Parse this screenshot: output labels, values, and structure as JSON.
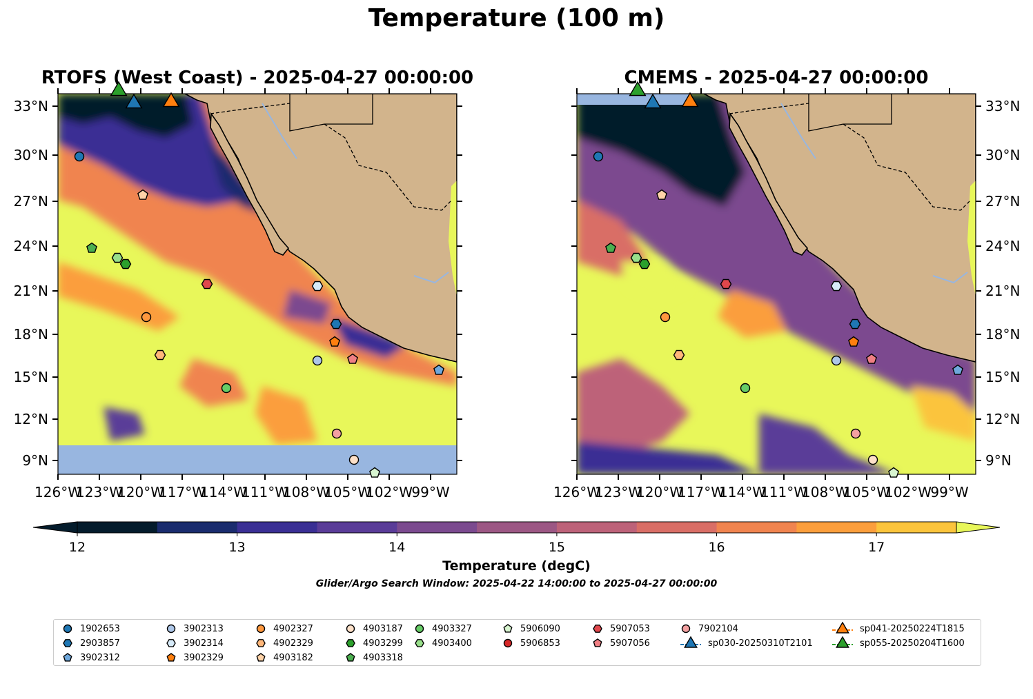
{
  "suptitle": "Temperature (100 m)",
  "panels": [
    {
      "title": "RTOFS (West Coast) - 2025-04-27 00:00:00"
    },
    {
      "title": "CMEMS - 2025-04-27 00:00:00"
    }
  ],
  "lat_ticks": [
    "33°N",
    "30°N",
    "27°N",
    "24°N",
    "21°N",
    "18°N",
    "15°N",
    "12°N",
    "9°N"
  ],
  "lon_ticks": [
    "126°W",
    "123°W",
    "120°W",
    "117°W",
    "114°W",
    "111°W",
    "108°W",
    "105°W",
    "102°W",
    "99°W"
  ],
  "colorbar": {
    "label": "Temperature (degC)",
    "ticks": [
      "12",
      "13",
      "14",
      "15",
      "16",
      "17"
    ],
    "colors": [
      "#041c2c",
      "#1a2c6e",
      "#3a2f94",
      "#5a3c98",
      "#7b4a8f",
      "#9c5784",
      "#bd6279",
      "#d96e66",
      "#f0844f",
      "#fb9e3c",
      "#fbc43c",
      "#e8f75a"
    ]
  },
  "window_text": "Glider/Argo Search Window: 2025-04-22 14:00:00 to 2025-04-27 00:00:00",
  "legend": [
    {
      "label": "1902653",
      "marker": "circle",
      "color": "#1f77b4"
    },
    {
      "label": "2903857",
      "marker": "hexagon",
      "color": "#1f77b4"
    },
    {
      "label": "3902312",
      "marker": "pentagon",
      "color": "#6fa8dc"
    },
    {
      "label": "3902313",
      "marker": "circle",
      "color": "#aec7e8"
    },
    {
      "label": "3902314",
      "marker": "hexagon",
      "color": "#d6eaf8"
    },
    {
      "label": "3902329",
      "marker": "pentagon",
      "color": "#ff7f0e"
    },
    {
      "label": "4902327",
      "marker": "circle",
      "color": "#ff983e"
    },
    {
      "label": "4902329",
      "marker": "hexagon",
      "color": "#ffb77a"
    },
    {
      "label": "4903182",
      "marker": "pentagon",
      "color": "#ffd3a8"
    },
    {
      "label": "4903187",
      "marker": "circle",
      "color": "#fde0c8"
    },
    {
      "label": "4903299",
      "marker": "hexagon",
      "color": "#2ca02c"
    },
    {
      "label": "4903318",
      "marker": "pentagon",
      "color": "#4caf50"
    },
    {
      "label": "4903327",
      "marker": "circle",
      "color": "#66cc66"
    },
    {
      "label": "4903400",
      "marker": "hexagon",
      "color": "#98df8a"
    },
    {
      "label": "5906090",
      "marker": "pentagon",
      "color": "#d8f5d0"
    },
    {
      "label": "5906853",
      "marker": "circle",
      "color": "#d62728"
    },
    {
      "label": "5907053",
      "marker": "hexagon",
      "color": "#e0474c"
    },
    {
      "label": "5907056",
      "marker": "pentagon",
      "color": "#f07f84"
    },
    {
      "label": "7902104",
      "marker": "circle",
      "color": "#f4a1a1"
    },
    {
      "label": "sp030-20250310T2101",
      "marker": "triangle",
      "color": "#1f77b4"
    },
    {
      "label": "sp041-20250224T1815",
      "marker": "triangle",
      "color": "#ff7f0e"
    },
    {
      "label": "sp055-20250204T1600",
      "marker": "triangle",
      "color": "#2ca02c"
    }
  ],
  "colors": {
    "land": "#d2b48c",
    "nodata": "#98b6e0",
    "coast": "#000000"
  }
}
